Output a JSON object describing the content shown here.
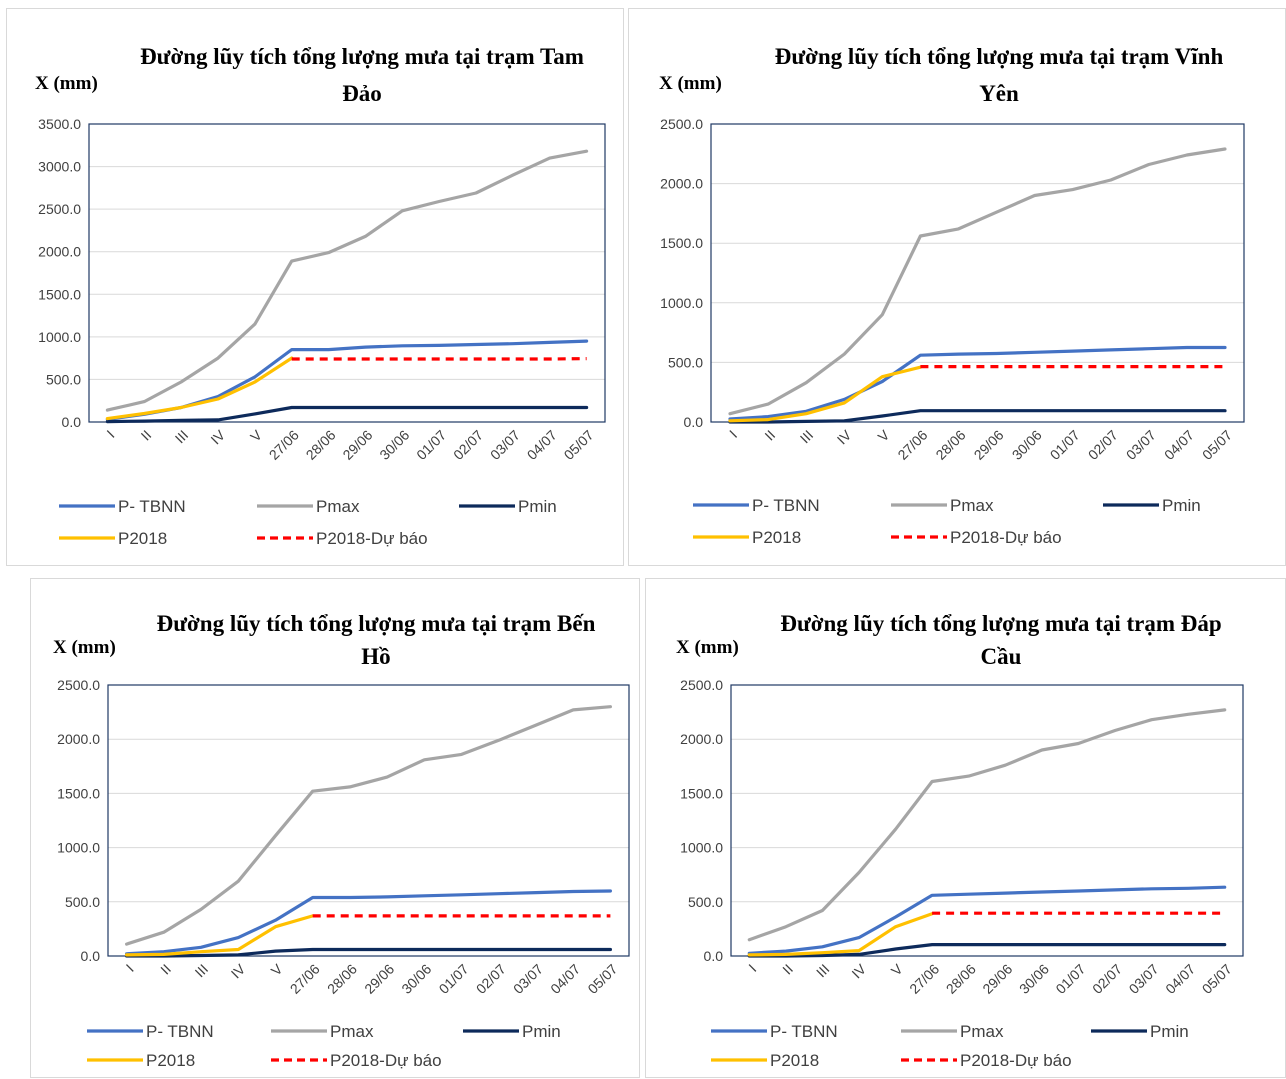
{
  "page": {
    "background": "#ffffff"
  },
  "colors": {
    "P- TBNN": "#4472c4",
    "Pmax": "#a5a5a5",
    "Pmin": "#0d2a5b",
    "P2018": "#ffc000",
    "P2018-Dự báo": "#ff0000",
    "plot_border": "#1f3864",
    "gridline": "#d9d9d9"
  },
  "chart_data": [
    {
      "type": "line",
      "title_lines": [
        "Đường lũy tích tổng lượng mưa tại trạm Tam",
        "Đảo"
      ],
      "ylabel": "X (mm)",
      "ylim": [
        0,
        3500
      ],
      "yticks": [
        "0.0",
        "500.0",
        "1000.0",
        "1500.0",
        "2000.0",
        "2500.0",
        "3000.0",
        "3500.0"
      ],
      "categories": [
        "I",
        "II",
        "III",
        "IV",
        "V",
        "27/06",
        "28/06",
        "29/06",
        "30/06",
        "01/07",
        "02/07",
        "03/07",
        "04/07",
        "05/07"
      ],
      "legend_position": "bottom",
      "series": [
        {
          "name": "P- TBNN",
          "style": "solid",
          "values": [
            30,
            90,
            170,
            300,
            530,
            850,
            850,
            880,
            895,
            900,
            910,
            920,
            935,
            950
          ]
        },
        {
          "name": "Pmax",
          "style": "solid",
          "values": [
            140,
            240,
            470,
            750,
            1150,
            1890,
            1990,
            2180,
            2480,
            2590,
            2690,
            2900,
            3100,
            3180
          ]
        },
        {
          "name": "Pmin",
          "style": "solid",
          "values": [
            5,
            10,
            20,
            25,
            95,
            170,
            170,
            170,
            170,
            170,
            170,
            170,
            170,
            170
          ]
        },
        {
          "name": "P2018",
          "style": "solid",
          "values": [
            40,
            100,
            170,
            270,
            470,
            750,
            null,
            null,
            null,
            null,
            null,
            null,
            null,
            null
          ]
        },
        {
          "name": "P2018-Dự báo",
          "style": "dashed",
          "values": [
            null,
            null,
            null,
            null,
            null,
            740,
            740,
            740,
            740,
            740,
            740,
            740,
            740,
            745
          ]
        }
      ]
    },
    {
      "type": "line",
      "title_lines": [
        "Đường lũy tích tổng lượng mưa tại trạm Vĩnh",
        "Yên"
      ],
      "ylabel": "X (mm)",
      "ylim": [
        0,
        2500
      ],
      "yticks": [
        "0.0",
        "500.0",
        "1000.0",
        "1500.0",
        "2000.0",
        "2500.0"
      ],
      "categories": [
        "I",
        "II",
        "III",
        "IV",
        "V",
        "27/06",
        "28/06",
        "29/06",
        "30/06",
        "01/07",
        "02/07",
        "03/07",
        "04/07",
        "05/07"
      ],
      "legend_position": "bottom",
      "series": [
        {
          "name": "P- TBNN",
          "style": "solid",
          "values": [
            25,
            45,
            90,
            190,
            340,
            560,
            570,
            575,
            585,
            595,
            605,
            615,
            625,
            625
          ]
        },
        {
          "name": "Pmax",
          "style": "solid",
          "values": [
            70,
            150,
            330,
            570,
            900,
            1560,
            1620,
            1760,
            1900,
            1950,
            2030,
            2160,
            2240,
            2290
          ]
        },
        {
          "name": "Pmin",
          "style": "solid",
          "values": [
            0,
            0,
            5,
            10,
            50,
            95,
            95,
            95,
            95,
            95,
            95,
            95,
            95,
            95
          ]
        },
        {
          "name": "P2018",
          "style": "solid",
          "values": [
            10,
            20,
            70,
            160,
            380,
            460,
            null,
            null,
            null,
            null,
            null,
            null,
            null,
            null
          ]
        },
        {
          "name": "P2018-Dự báo",
          "style": "dashed",
          "values": [
            null,
            null,
            null,
            null,
            null,
            465,
            465,
            465,
            465,
            465,
            465,
            465,
            465,
            465
          ]
        }
      ]
    },
    {
      "type": "line",
      "title_lines": [
        "Đường lũy tích tổng lượng mưa tại trạm Bến",
        "Hồ"
      ],
      "ylabel": "X (mm)",
      "ylim": [
        0,
        2500
      ],
      "yticks": [
        "0.0",
        "500.0",
        "1000.0",
        "1500.0",
        "2000.0",
        "2500.0"
      ],
      "categories": [
        "I",
        "II",
        "III",
        "IV",
        "V",
        "27/06",
        "28/06",
        "29/06",
        "30/06",
        "01/07",
        "02/07",
        "03/07",
        "04/07",
        "05/07"
      ],
      "legend_position": "bottom",
      "series": [
        {
          "name": "P- TBNN",
          "style": "solid",
          "values": [
            20,
            40,
            80,
            170,
            330,
            540,
            540,
            545,
            555,
            565,
            575,
            585,
            595,
            600
          ]
        },
        {
          "name": "Pmax",
          "style": "solid",
          "values": [
            110,
            220,
            430,
            690,
            1110,
            1520,
            1560,
            1650,
            1810,
            1860,
            1990,
            2130,
            2270,
            2300
          ]
        },
        {
          "name": "Pmin",
          "style": "solid",
          "values": [
            0,
            0,
            5,
            10,
            45,
            60,
            60,
            60,
            60,
            60,
            60,
            60,
            60,
            60
          ]
        },
        {
          "name": "P2018",
          "style": "solid",
          "values": [
            10,
            15,
            40,
            60,
            270,
            370,
            null,
            null,
            null,
            null,
            null,
            null,
            null,
            null
          ]
        },
        {
          "name": "P2018-Dự báo",
          "style": "dashed",
          "values": [
            null,
            null,
            null,
            null,
            null,
            370,
            370,
            370,
            370,
            370,
            370,
            370,
            370,
            370
          ]
        }
      ]
    },
    {
      "type": "line",
      "title_lines": [
        "Đường lũy tích tổng lượng mưa tại trạm Đáp",
        "Cầu"
      ],
      "ylabel": "X (mm)",
      "ylim": [
        0,
        2500
      ],
      "yticks": [
        "0.0",
        "500.0",
        "1000.0",
        "1500.0",
        "2000.0",
        "2500.0"
      ],
      "categories": [
        "I",
        "II",
        "III",
        "IV",
        "V",
        "27/06",
        "28/06",
        "29/06",
        "30/06",
        "01/07",
        "02/07",
        "03/07",
        "04/07",
        "05/07"
      ],
      "legend_position": "bottom",
      "series": [
        {
          "name": "P- TBNN",
          "style": "solid",
          "values": [
            25,
            45,
            85,
            170,
            360,
            560,
            570,
            580,
            590,
            600,
            610,
            620,
            625,
            635
          ]
        },
        {
          "name": "Pmax",
          "style": "solid",
          "values": [
            150,
            270,
            420,
            770,
            1170,
            1610,
            1660,
            1760,
            1900,
            1960,
            2080,
            2180,
            2230,
            2270
          ]
        },
        {
          "name": "Pmin",
          "style": "solid",
          "values": [
            0,
            0,
            5,
            15,
            65,
            105,
            105,
            105,
            105,
            105,
            105,
            105,
            105,
            105
          ]
        },
        {
          "name": "P2018",
          "style": "solid",
          "values": [
            10,
            15,
            30,
            50,
            270,
            390,
            null,
            null,
            null,
            null,
            null,
            null,
            null,
            null
          ]
        },
        {
          "name": "P2018-Dự báo",
          "style": "dashed",
          "values": [
            null,
            null,
            null,
            null,
            null,
            395,
            395,
            395,
            395,
            395,
            395,
            395,
            395,
            395
          ]
        }
      ]
    }
  ]
}
